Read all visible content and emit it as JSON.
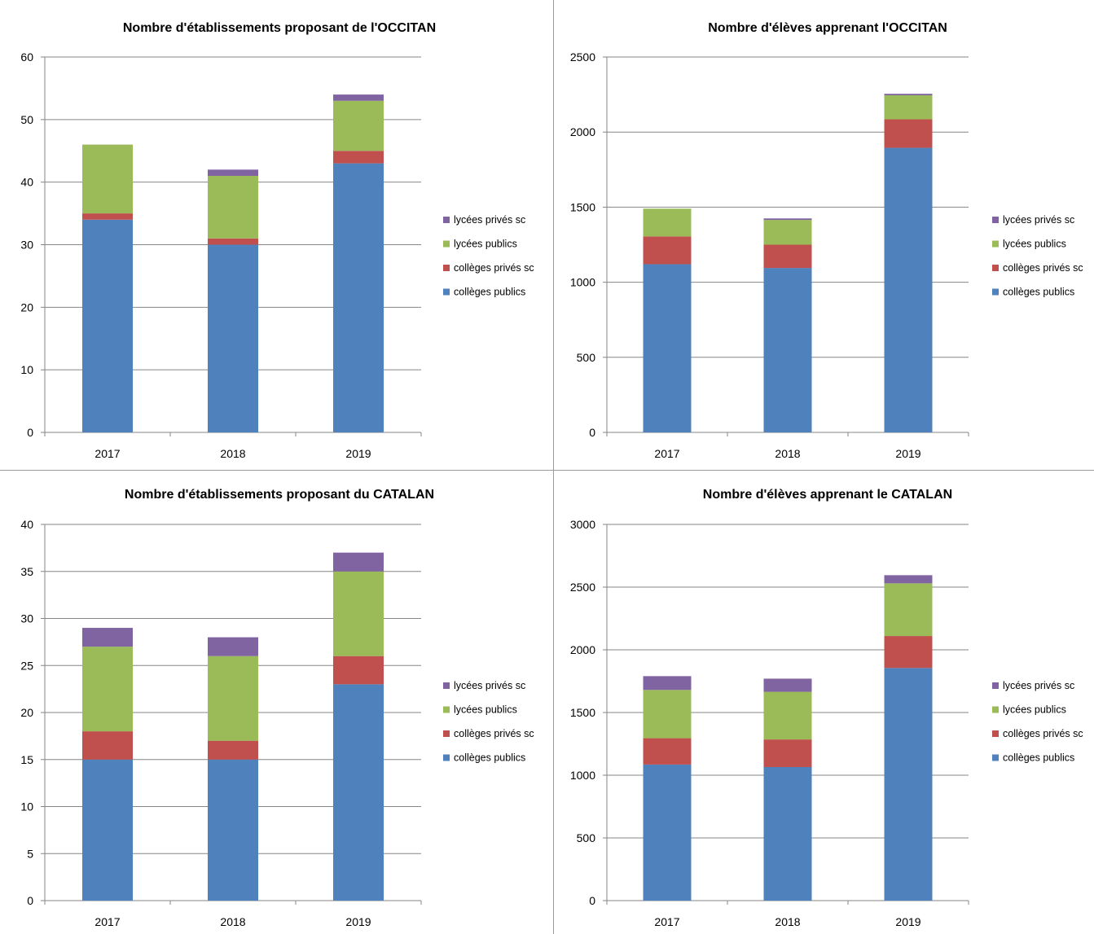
{
  "colors": {
    "colleges_publics": "#4f81bd",
    "colleges_prives": "#c0504d",
    "lycees_publics": "#9bbb59",
    "lycees_prives": "#8064a2",
    "gridline": "#868686",
    "axis": "#868686"
  },
  "chart_data": [
    {
      "type": "bar",
      "stacked": true,
      "title": "Nombre d'établissements proposant de l'OCCITAN",
      "categories": [
        "2017",
        "2018",
        "2019"
      ],
      "ylim": [
        0,
        60
      ],
      "yticks": [
        0,
        10,
        20,
        30,
        40,
        50,
        60
      ],
      "ytick_labels": [
        "0",
        "10",
        "20",
        "30",
        "40",
        "50",
        "60"
      ],
      "grid": true,
      "legend_position": "right",
      "series": [
        {
          "name": "collèges publics",
          "color_key": "colleges_publics",
          "values": [
            34,
            30,
            43
          ]
        },
        {
          "name": "collèges privés sc",
          "color_key": "colleges_prives",
          "values": [
            1,
            1,
            2
          ]
        },
        {
          "name": "lycées publics",
          "color_key": "lycees_publics",
          "values": [
            11,
            10,
            8
          ]
        },
        {
          "name": "lycées privés sc",
          "color_key": "lycees_prives",
          "values": [
            0,
            1,
            1
          ]
        }
      ]
    },
    {
      "type": "bar",
      "stacked": true,
      "title": "Nombre d'élèves apprenant l'OCCITAN",
      "categories": [
        "2017",
        "2018",
        "2019"
      ],
      "ylim": [
        0,
        2500
      ],
      "yticks": [
        0,
        500,
        1000,
        1500,
        2000,
        2500
      ],
      "ytick_labels": [
        "0",
        "500",
        "1000",
        "1500",
        "2000",
        "2500"
      ],
      "grid": true,
      "legend_position": "right",
      "series": [
        {
          "name": "collèges publics",
          "color_key": "colleges_publics",
          "values": [
            1120,
            1095,
            1895
          ]
        },
        {
          "name": "collèges privés sc",
          "color_key": "colleges_prives",
          "values": [
            185,
            155,
            190
          ]
        },
        {
          "name": "lycées publics",
          "color_key": "lycees_publics",
          "values": [
            185,
            165,
            160
          ]
        },
        {
          "name": "lycées privés sc",
          "color_key": "lycees_prives",
          "values": [
            0,
            10,
            10
          ]
        }
      ]
    },
    {
      "type": "bar",
      "stacked": true,
      "title": "Nombre d'établissements proposant du CATALAN",
      "categories": [
        "2017",
        "2018",
        "2019"
      ],
      "ylim": [
        0,
        40
      ],
      "yticks": [
        0,
        5,
        10,
        15,
        20,
        25,
        30,
        35,
        40
      ],
      "ytick_labels": [
        "0",
        "5",
        "10",
        "15",
        "20",
        "25",
        "30",
        "35",
        "40"
      ],
      "grid": true,
      "legend_position": "right",
      "series": [
        {
          "name": "collèges publics",
          "color_key": "colleges_publics",
          "values": [
            15,
            15,
            23
          ]
        },
        {
          "name": "collèges privés sc",
          "color_key": "colleges_prives",
          "values": [
            3,
            2,
            3
          ]
        },
        {
          "name": "lycées publics",
          "color_key": "lycees_publics",
          "values": [
            9,
            9,
            9
          ]
        },
        {
          "name": "lycées privés sc",
          "color_key": "lycees_prives",
          "values": [
            2,
            2,
            2
          ]
        }
      ]
    },
    {
      "type": "bar",
      "stacked": true,
      "title": "Nombre d'élèves apprenant le CATALAN",
      "categories": [
        "2017",
        "2018",
        "2019"
      ],
      "ylim": [
        0,
        3000
      ],
      "yticks": [
        0,
        500,
        1000,
        1500,
        2000,
        2500,
        3000
      ],
      "ytick_labels": [
        "0",
        "500",
        "1000",
        "1500",
        "2000",
        "2500",
        "3000"
      ],
      "grid": true,
      "legend_position": "right",
      "series": [
        {
          "name": "collèges publics",
          "color_key": "colleges_publics",
          "values": [
            1085,
            1065,
            1855
          ]
        },
        {
          "name": "collèges privés sc",
          "color_key": "colleges_prives",
          "values": [
            210,
            220,
            255
          ]
        },
        {
          "name": "lycées publics",
          "color_key": "lycees_publics",
          "values": [
            385,
            380,
            420
          ]
        },
        {
          "name": "lycées privés sc",
          "color_key": "lycees_prives",
          "values": [
            110,
            105,
            65
          ]
        }
      ]
    }
  ],
  "legend_order": [
    "lycées privés sc",
    "lycées publics",
    "collèges privés sc",
    "collèges publics"
  ]
}
